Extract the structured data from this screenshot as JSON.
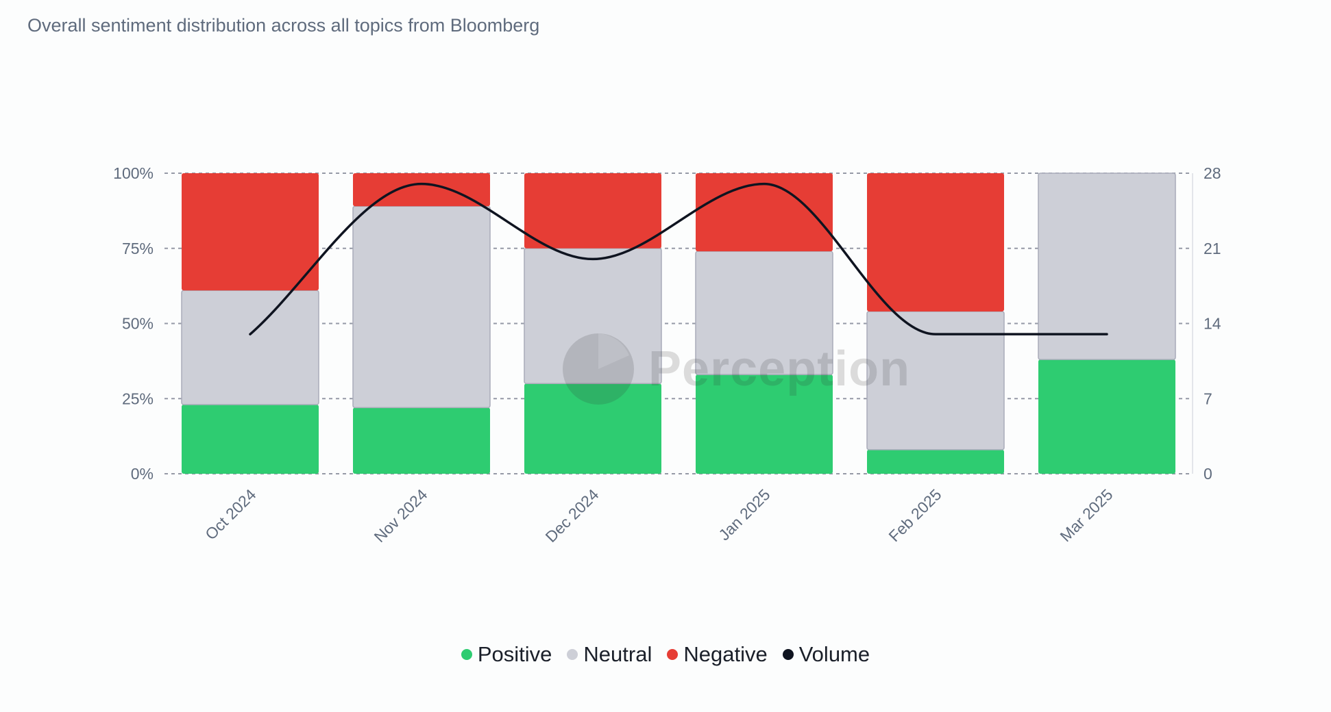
{
  "title": "Overall sentiment distribution across all topics from Bloomberg",
  "watermark": "Perception",
  "colors": {
    "positive": "#2ecc71",
    "neutral": "#cdcfd7",
    "neutral_border": "#a9acba",
    "negative": "#e63d35",
    "volume": "#0f1420",
    "grid": "#9599a6",
    "axis_text": "#5f6b7d"
  },
  "legend": [
    {
      "key": "positive",
      "label": "Positive"
    },
    {
      "key": "neutral",
      "label": "Neutral"
    },
    {
      "key": "negative",
      "label": "Negative"
    },
    {
      "key": "volume",
      "label": "Volume"
    }
  ],
  "chart_data": {
    "type": "bar",
    "stacked": true,
    "percent": true,
    "categories": [
      "Oct 2024",
      "Nov 2024",
      "Dec 2024",
      "Jan 2025",
      "Feb 2025",
      "Mar 2025"
    ],
    "series": [
      {
        "name": "Positive",
        "key": "positive",
        "values": [
          23,
          22,
          30,
          33,
          8,
          38
        ]
      },
      {
        "name": "Neutral",
        "key": "neutral",
        "values": [
          38,
          67,
          45,
          41,
          46,
          62
        ]
      },
      {
        "name": "Negative",
        "key": "negative",
        "values": [
          39,
          11,
          25,
          26,
          46,
          0
        ]
      }
    ],
    "line": {
      "name": "Volume",
      "key": "volume",
      "values": [
        13,
        27,
        20,
        27,
        13,
        13
      ],
      "axis": "right"
    },
    "y_left": {
      "ticks": [
        "0%",
        "25%",
        "50%",
        "75%",
        "100%"
      ],
      "range": [
        0,
        100
      ]
    },
    "y_right": {
      "ticks": [
        "0",
        "7",
        "14",
        "21",
        "28"
      ],
      "range": [
        0,
        28
      ]
    },
    "grid": true,
    "legend_position": "bottom-center"
  }
}
